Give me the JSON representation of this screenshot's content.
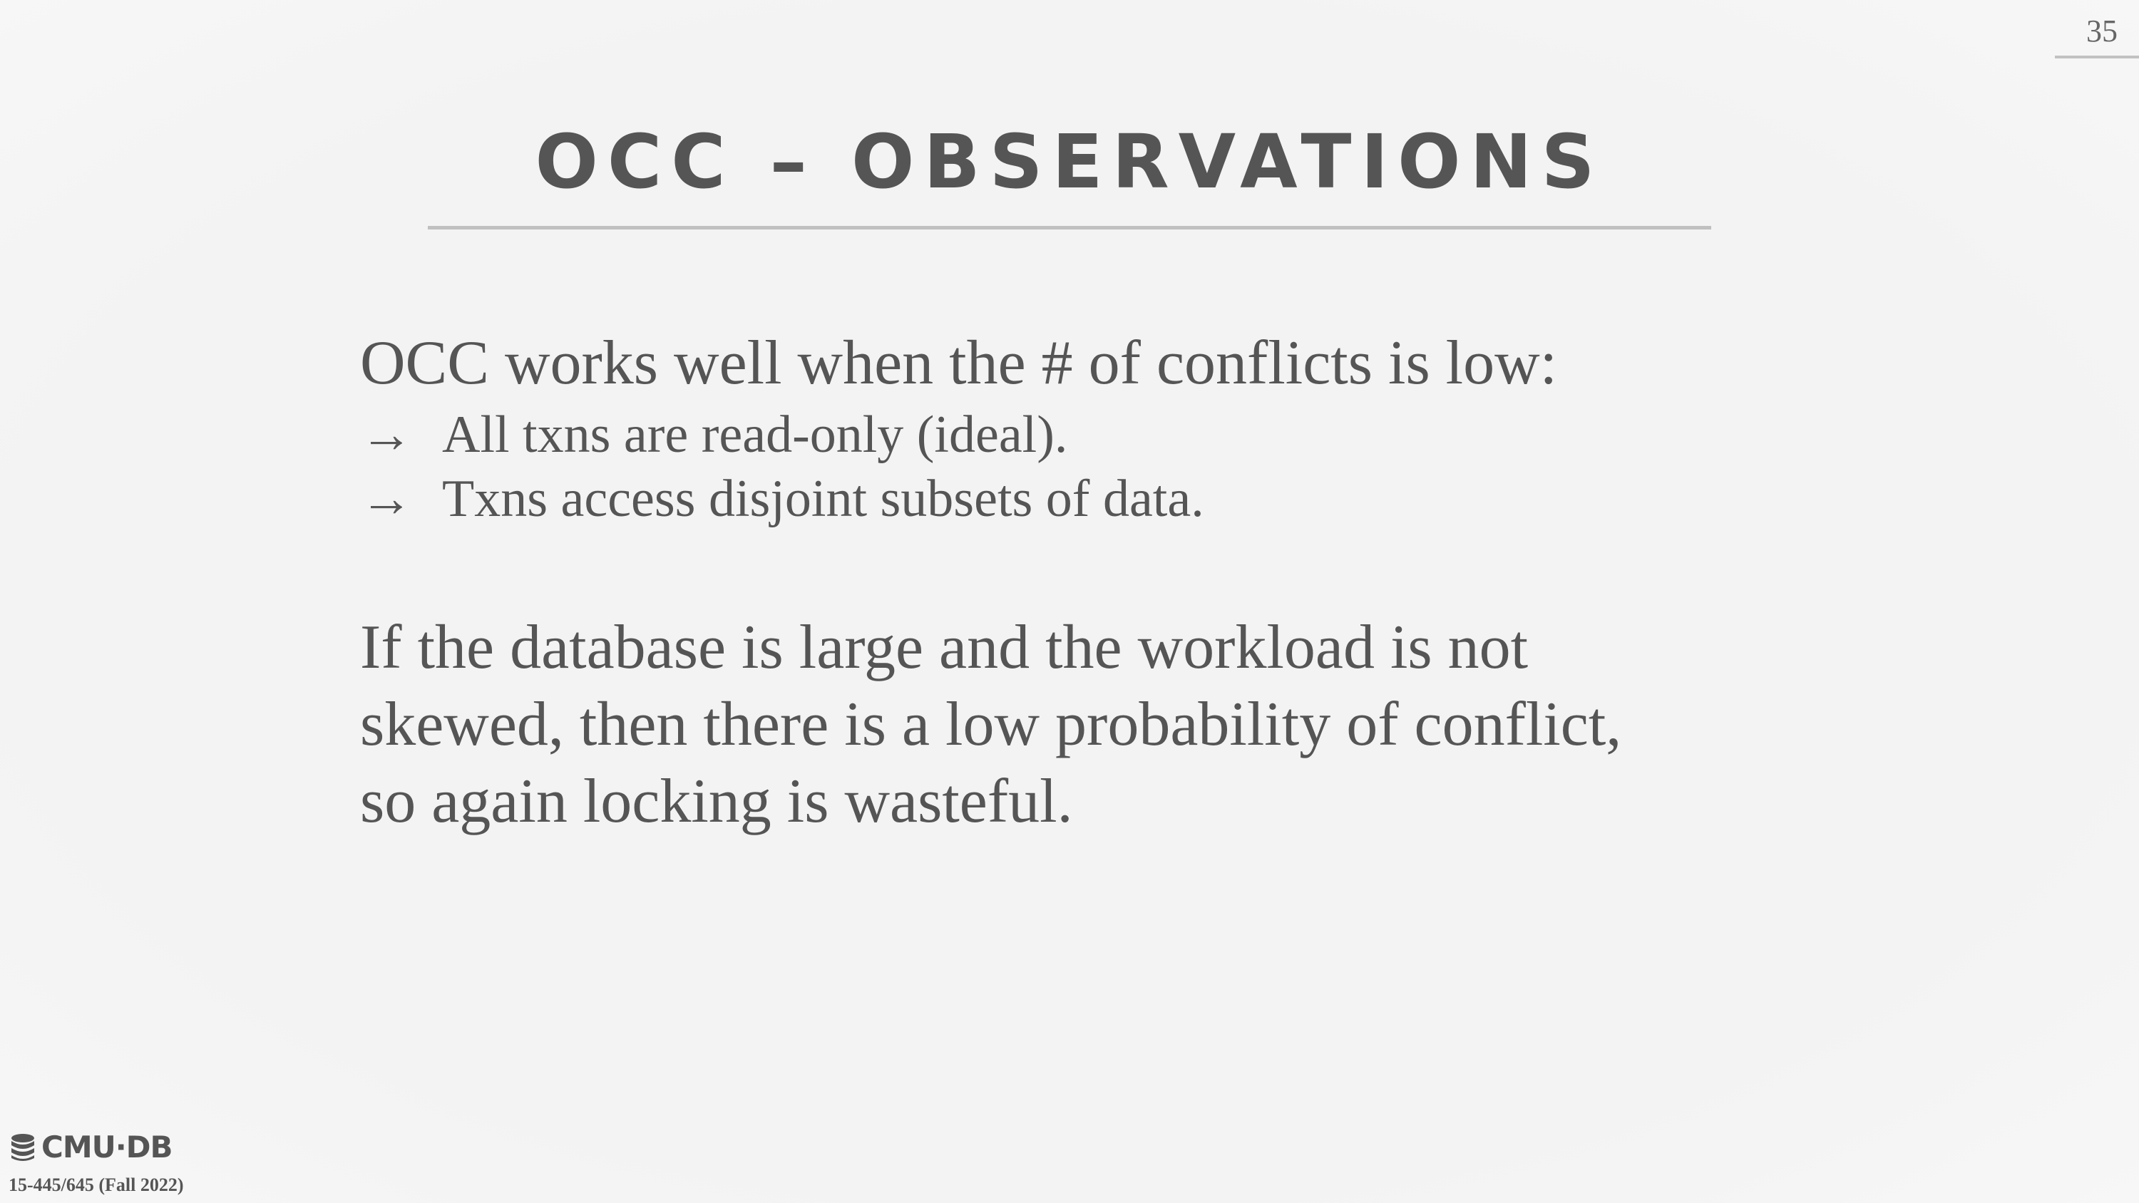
{
  "slide": {
    "page_number": "35",
    "title": "OCC – OBSERVATIONS",
    "lead": "OCC works well when the # of conflicts is low:",
    "bullets": [
      {
        "arrow": "→",
        "text": "All txns are read-only (ideal)."
      },
      {
        "arrow": "→",
        "text": "Txns access disjoint subsets of data."
      }
    ],
    "paragraph_lines": [
      "If the database is large and the workload is not",
      "skewed, then there is a low probability of conflict,",
      "so again locking is wasteful."
    ]
  },
  "footer": {
    "logo_text": "CMU·DB",
    "logo_icon": "database-icon",
    "course": "15-445/645 (Fall 2022)"
  }
}
